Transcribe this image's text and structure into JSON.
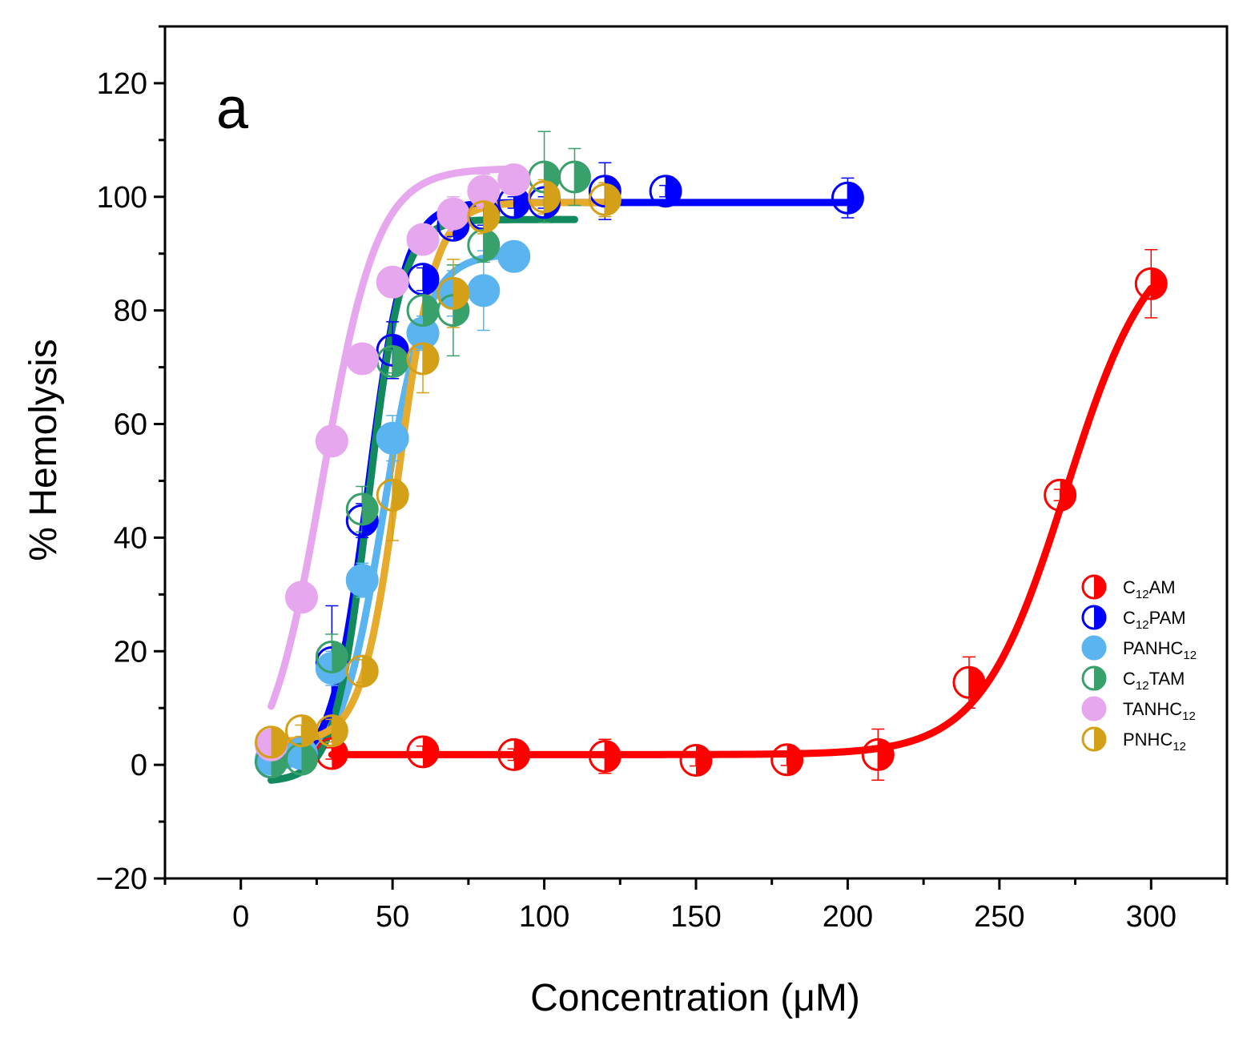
{
  "chart_data": {
    "type": "scatter",
    "panel_label": "a",
    "xlabel": "Concentration (μM)",
    "ylabel": "% Hemolysis",
    "xlim": [
      -25,
      325
    ],
    "ylim": [
      -20,
      130
    ],
    "x_ticks": [
      0,
      50,
      100,
      150,
      200,
      250,
      300
    ],
    "y_ticks": [
      -20,
      0,
      20,
      40,
      60,
      80,
      100,
      120
    ],
    "x_tick_labels": [
      "0",
      "50",
      "100",
      "150",
      "200",
      "250",
      "300"
    ],
    "y_tick_labels": [
      "−20",
      "0",
      "20",
      "40",
      "60",
      "80",
      "100",
      "120"
    ],
    "legend_position": "right",
    "series": [
      {
        "name": "C12AM",
        "label_main": "C",
        "label_sub": "12",
        "label_end": "AM",
        "color": "#ff0000",
        "fill_side": "right",
        "x": [
          30,
          60,
          90,
          120,
          150,
          180,
          210,
          240,
          270,
          300
        ],
        "y": [
          2,
          2.3,
          1.8,
          1.5,
          0.8,
          0.9,
          1.8,
          14.5,
          47.5,
          84.7
        ],
        "err": [
          1,
          1,
          1,
          3,
          1,
          1,
          4.5,
          4.5,
          1,
          6
        ],
        "fit": {
          "bottom": 1.8,
          "top": 95,
          "x50": 272,
          "slope": 14
        }
      },
      {
        "name": "C12PAM",
        "label_main": "C",
        "label_sub": "12",
        "label_end": "PAM",
        "color": "#0000ff",
        "fill_side": "right",
        "x": [
          10,
          20,
          30,
          40,
          50,
          60,
          70,
          80,
          90,
          100,
          120,
          140,
          200
        ],
        "y": [
          0.5,
          2,
          18,
          43,
          73,
          85.5,
          95,
          97,
          99,
          99,
          101,
          101,
          99.8
        ],
        "err": [
          1,
          1,
          10,
          3,
          5,
          2,
          2,
          2,
          1,
          1,
          5,
          1,
          3.5
        ],
        "fit": {
          "bottom": -1,
          "top": 99,
          "x50": 42,
          "slope": 6
        },
        "fit_range": [
          10,
          200
        ]
      },
      {
        "name": "PANHC12",
        "label_main": "PANHC",
        "label_sub": "12",
        "label_end": "",
        "color": "#5ab4ef",
        "fill_side": "full",
        "x": [
          10,
          20,
          30,
          40,
          50,
          60,
          70,
          80,
          90
        ],
        "y": [
          1,
          2,
          17,
          32.5,
          57.5,
          76,
          83,
          83.5,
          89.5
        ],
        "err": [
          1,
          1,
          3,
          3,
          4,
          3,
          4,
          7,
          2
        ],
        "fit": {
          "bottom": -1,
          "top": 90,
          "x50": 47,
          "slope": 7
        },
        "fit_range": [
          10,
          90
        ]
      },
      {
        "name": "C12TAM",
        "label_main": "C",
        "label_sub": "12",
        "label_end": "TAM",
        "color": "#38a06a",
        "fill_side": "right",
        "x": [
          10,
          20,
          30,
          40,
          50,
          60,
          70,
          80,
          100,
          110
        ],
        "y": [
          0.5,
          1,
          19,
          45,
          71,
          80,
          80,
          91.5,
          103.5,
          103.5
        ],
        "err": [
          1,
          1,
          4,
          4,
          2,
          3,
          8,
          3,
          8,
          5
        ],
        "fit": {
          "bottom": -3,
          "top": 96,
          "x50": 42,
          "slope": 5.5
        },
        "fit_range": [
          10,
          110
        ],
        "fit_color": "#128a5e"
      },
      {
        "name": "TANHC12",
        "label_main": "TANHC",
        "label_sub": "12",
        "label_end": "",
        "color": "#e7a7ef",
        "fill_side": "full",
        "x": [
          10,
          20,
          30,
          40,
          50,
          60,
          70,
          80,
          90
        ],
        "y": [
          3.5,
          29.5,
          57,
          71.5,
          85,
          92.5,
          97,
          101,
          103
        ],
        "err": [
          1,
          2,
          2,
          2,
          2,
          2,
          3,
          3,
          2
        ],
        "fit": {
          "bottom": -4,
          "top": 105,
          "x50": 27,
          "slope": 9
        },
        "fit_range": [
          10,
          90
        ]
      },
      {
        "name": "PNHC12",
        "label_main": "PNHC",
        "label_sub": "12",
        "label_end": "",
        "color": "#d4a017",
        "fill_side": "right",
        "x": [
          10,
          20,
          30,
          40,
          50,
          60,
          70,
          80,
          100,
          120
        ],
        "y": [
          4,
          6,
          6,
          16.5,
          47.5,
          71.5,
          83,
          96.5,
          100,
          99.5
        ],
        "err": [
          1,
          1,
          2,
          2,
          8,
          6,
          6,
          3,
          3,
          3
        ],
        "fit": {
          "bottom": 4,
          "top": 99,
          "x50": 52,
          "slope": 6
        },
        "fit_range": [
          10,
          120
        ],
        "fit_color": "#e6aa2c"
      }
    ]
  }
}
